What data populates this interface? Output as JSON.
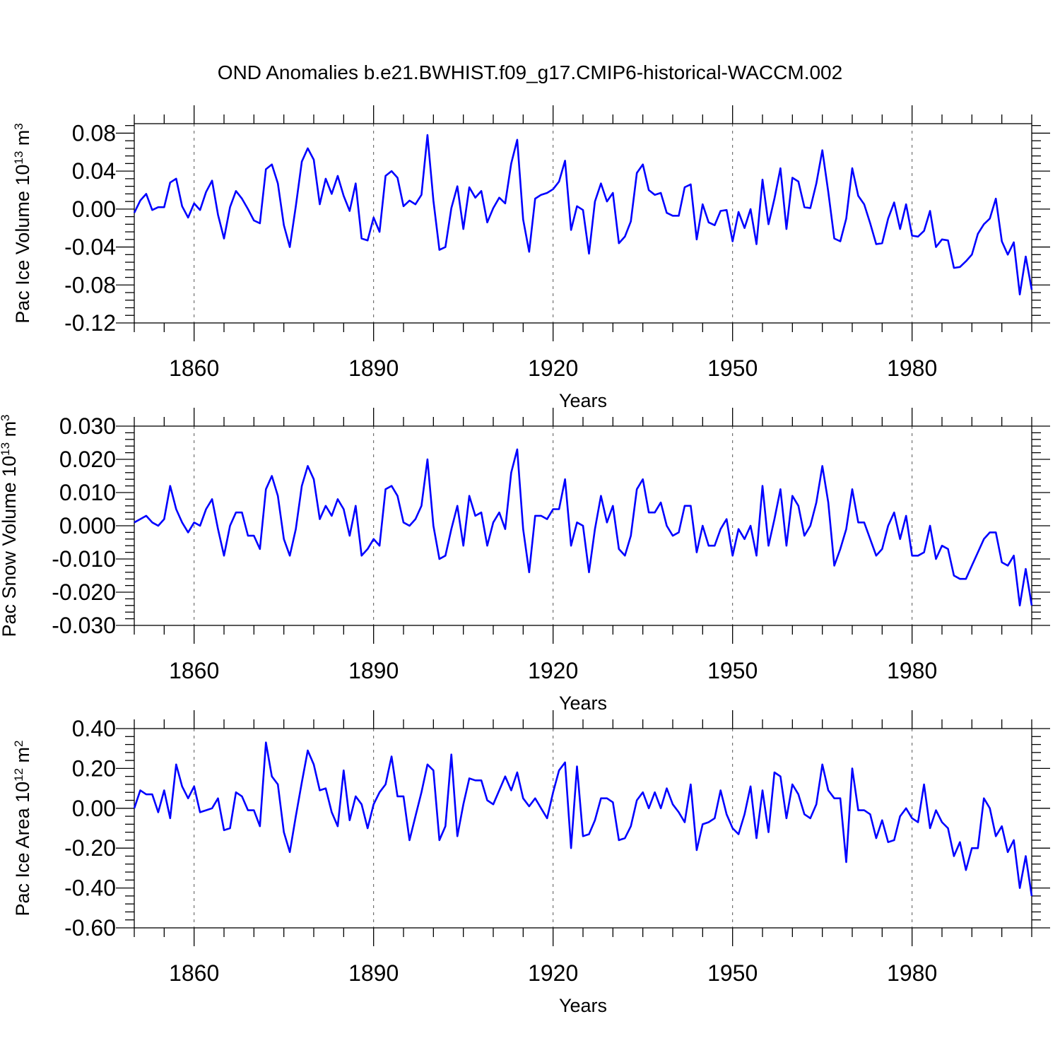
{
  "title": "OND Anomalies b.e21.BWHIST.f09_g17.CMIP6-historical-WACCM.002",
  "colors": {
    "line": "#0000ff",
    "axis": "#000000",
    "grid": "#555555"
  },
  "chart_data": [
    {
      "type": "line",
      "ylabel": {
        "main": "Pac Ice Volume 10",
        "sup": "13",
        "unit": " m",
        "unit_sup": "3"
      },
      "xlabel": "Years",
      "xlim": [
        1850,
        2000
      ],
      "ylim": [
        -0.12,
        0.09
      ],
      "xticks": [
        1860,
        1890,
        1920,
        1950,
        1980
      ],
      "yticks": [
        -0.12,
        -0.08,
        -0.04,
        0.0,
        0.04,
        0.08
      ],
      "ytick_labels": [
        "-0.12",
        "-0.08",
        "-0.04",
        "0.00",
        "0.04",
        "0.08"
      ],
      "grid": "vertical dashed at major x ticks",
      "x_start": 1850,
      "values": [
        -0.004,
        0.009,
        0.016,
        -0.001,
        0.002,
        0.002,
        0.028,
        0.032,
        0.003,
        -0.009,
        0.006,
        -0.001,
        0.018,
        0.03,
        -0.006,
        -0.031,
        0.002,
        0.019,
        0.011,
        0.0,
        -0.012,
        -0.015,
        0.042,
        0.047,
        0.027,
        -0.017,
        -0.04,
        0.003,
        0.05,
        0.064,
        0.052,
        0.005,
        0.032,
        0.016,
        0.035,
        0.014,
        -0.002,
        0.027,
        -0.031,
        -0.033,
        -0.009,
        -0.024,
        0.035,
        0.04,
        0.033,
        0.003,
        0.009,
        0.005,
        0.015,
        0.078,
        0.009,
        -0.043,
        -0.04,
        0.001,
        0.024,
        -0.021,
        0.023,
        0.012,
        0.019,
        -0.014,
        0.001,
        0.012,
        0.006,
        0.048,
        0.073,
        -0.011,
        -0.045,
        0.011,
        0.015,
        0.017,
        0.021,
        0.029,
        0.051,
        -0.022,
        0.003,
        -0.001,
        -0.047,
        0.008,
        0.027,
        0.008,
        0.017,
        -0.036,
        -0.029,
        -0.013,
        0.038,
        0.047,
        0.02,
        0.015,
        0.017,
        -0.004,
        -0.007,
        -0.007,
        0.023,
        0.026,
        -0.032,
        0.005,
        -0.014,
        -0.017,
        -0.002,
        -0.001,
        -0.034,
        -0.003,
        -0.02,
        0.0,
        -0.037,
        0.031,
        -0.016,
        0.011,
        0.043,
        -0.021,
        0.033,
        0.029,
        0.002,
        0.001,
        0.027,
        0.062,
        0.018,
        -0.031,
        -0.034,
        -0.01,
        0.043,
        0.014,
        0.005,
        -0.015,
        -0.037,
        -0.036,
        -0.01,
        0.007,
        -0.021,
        0.005,
        -0.028,
        -0.029,
        -0.023,
        -0.002,
        -0.04,
        -0.032,
        -0.033,
        -0.062,
        -0.061,
        -0.055,
        -0.048,
        -0.026,
        -0.016,
        -0.01,
        0.011,
        -0.034,
        -0.048,
        -0.035,
        -0.09,
        -0.05,
        -0.085
      ]
    },
    {
      "type": "line",
      "ylabel": {
        "main": "Pac Snow Volume 10",
        "sup": "13",
        "unit": " m",
        "unit_sup": "3"
      },
      "xlabel": "Years",
      "xlim": [
        1850,
        2000
      ],
      "ylim": [
        -0.03,
        0.03
      ],
      "xticks": [
        1860,
        1890,
        1920,
        1950,
        1980
      ],
      "yticks": [
        -0.03,
        -0.02,
        -0.01,
        0.0,
        0.01,
        0.02,
        0.03
      ],
      "ytick_labels": [
        "-0.030",
        "-0.020",
        "-0.010",
        "0.000",
        "0.010",
        "0.020",
        "0.030"
      ],
      "grid": "vertical dashed at major x ticks",
      "x_start": 1850,
      "values": [
        0.001,
        0.002,
        0.003,
        0.001,
        0.0,
        0.002,
        0.012,
        0.005,
        0.001,
        -0.002,
        0.001,
        0.0,
        0.005,
        0.008,
        -0.001,
        -0.009,
        0.0,
        0.004,
        0.004,
        -0.003,
        -0.003,
        -0.007,
        0.011,
        0.015,
        0.009,
        -0.004,
        -0.009,
        -0.001,
        0.012,
        0.018,
        0.014,
        0.002,
        0.006,
        0.003,
        0.008,
        0.005,
        -0.003,
        0.006,
        -0.009,
        -0.007,
        -0.004,
        -0.006,
        0.011,
        0.012,
        0.009,
        0.001,
        0.0,
        0.002,
        0.006,
        0.02,
        0.0,
        -0.01,
        -0.009,
        -0.001,
        0.006,
        -0.006,
        0.009,
        0.003,
        0.004,
        -0.006,
        0.001,
        0.004,
        -0.001,
        0.016,
        0.023,
        -0.001,
        -0.014,
        0.003,
        0.003,
        0.002,
        0.005,
        0.005,
        0.014,
        -0.006,
        0.001,
        0.0,
        -0.014,
        -0.001,
        0.009,
        0.001,
        0.006,
        -0.007,
        -0.009,
        -0.003,
        0.011,
        0.014,
        0.004,
        0.004,
        0.007,
        0.0,
        -0.003,
        -0.002,
        0.006,
        0.006,
        -0.008,
        0.0,
        -0.006,
        -0.006,
        -0.001,
        0.002,
        -0.009,
        -0.001,
        -0.004,
        0.0,
        -0.009,
        0.012,
        -0.006,
        0.002,
        0.011,
        -0.006,
        0.009,
        0.006,
        -0.003,
        0.0,
        0.007,
        0.018,
        0.007,
        -0.012,
        -0.007,
        -0.001,
        0.011,
        0.001,
        0.001,
        -0.004,
        -0.009,
        -0.007,
        0.0,
        0.004,
        -0.004,
        0.003,
        -0.009,
        -0.009,
        -0.008,
        0.0,
        -0.01,
        -0.006,
        -0.007,
        -0.015,
        -0.016,
        -0.016,
        -0.012,
        -0.008,
        -0.004,
        -0.002,
        -0.002,
        -0.011,
        -0.012,
        -0.009,
        -0.024,
        -0.013,
        -0.024
      ]
    },
    {
      "type": "line",
      "ylabel": {
        "main": "Pac Ice Area 10",
        "sup": "12",
        "unit": " m",
        "unit_sup": "2"
      },
      "xlabel": "Years",
      "xlim": [
        1850,
        2000
      ],
      "ylim": [
        -0.6,
        0.4
      ],
      "xticks": [
        1860,
        1890,
        1920,
        1950,
        1980
      ],
      "yticks": [
        -0.6,
        -0.4,
        -0.2,
        0.0,
        0.2,
        0.4
      ],
      "ytick_labels": [
        "-0.60",
        "-0.40",
        "-0.20",
        "0.00",
        "0.20",
        "0.40"
      ],
      "grid": "vertical dashed at major x ticks",
      "x_start": 1850,
      "values": [
        0.0,
        0.09,
        0.07,
        0.07,
        -0.02,
        0.09,
        -0.05,
        0.22,
        0.11,
        0.05,
        0.11,
        -0.02,
        -0.01,
        0.0,
        0.05,
        -0.11,
        -0.1,
        0.08,
        0.06,
        -0.01,
        -0.01,
        -0.09,
        0.33,
        0.16,
        0.12,
        -0.12,
        -0.22,
        -0.04,
        0.13,
        0.29,
        0.22,
        0.09,
        0.1,
        -0.02,
        -0.09,
        0.19,
        -0.06,
        0.06,
        0.02,
        -0.1,
        0.02,
        0.08,
        0.12,
        0.26,
        0.06,
        0.06,
        -0.16,
        -0.04,
        0.08,
        0.22,
        0.19,
        -0.16,
        -0.09,
        0.27,
        -0.14,
        0.02,
        0.15,
        0.14,
        0.14,
        0.04,
        0.02,
        0.09,
        0.16,
        0.09,
        0.18,
        0.05,
        0.01,
        0.05,
        0.0,
        -0.05,
        0.08,
        0.19,
        0.23,
        -0.2,
        0.21,
        -0.14,
        -0.13,
        -0.06,
        0.05,
        0.05,
        0.03,
        -0.16,
        -0.15,
        -0.09,
        0.04,
        0.08,
        0.0,
        0.08,
        0.0,
        0.1,
        0.02,
        -0.02,
        -0.07,
        0.12,
        -0.21,
        -0.08,
        -0.07,
        -0.05,
        0.09,
        -0.03,
        -0.1,
        -0.13,
        -0.03,
        0.11,
        -0.15,
        0.09,
        -0.12,
        0.18,
        0.16,
        -0.05,
        0.12,
        0.07,
        -0.03,
        -0.05,
        0.02,
        0.22,
        0.09,
        0.05,
        0.05,
        -0.27,
        0.2,
        -0.01,
        -0.01,
        -0.03,
        -0.15,
        -0.06,
        -0.17,
        -0.16,
        -0.04,
        0.0,
        -0.05,
        -0.07,
        0.12,
        -0.1,
        -0.01,
        -0.07,
        -0.1,
        -0.24,
        -0.17,
        -0.31,
        -0.2,
        -0.2,
        0.05,
        0.0,
        -0.14,
        -0.09,
        -0.22,
        -0.16,
        -0.4,
        -0.24,
        -0.44
      ]
    }
  ]
}
